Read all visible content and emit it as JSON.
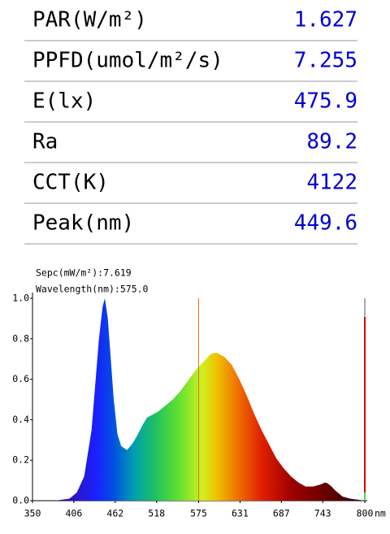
{
  "table": {
    "rows": [
      [
        "PAR(W/m²)",
        "1.627"
      ],
      [
        "PPFD(umol/m²/s)",
        "7.255"
      ],
      [
        "E(lx)",
        "475.9"
      ],
      [
        "Ra",
        "89.2"
      ],
      [
        "CCT(K)",
        "4122"
      ],
      [
        "Peak(nm)",
        "449.6"
      ]
    ]
  },
  "chart_data": {
    "type": "area",
    "annotations": [
      "Sepc(mW/m²):7.619",
      "Wavelength(nm):575.0"
    ],
    "x": [
      380,
      400,
      410,
      420,
      430,
      440,
      445,
      448,
      452,
      460,
      465,
      470,
      478,
      485,
      490,
      500,
      505,
      510,
      520,
      530,
      540,
      550,
      560,
      570,
      580,
      590,
      595,
      600,
      610,
      620,
      630,
      640,
      650,
      660,
      670,
      680,
      690,
      700,
      710,
      720,
      730,
      740,
      746,
      750,
      755,
      760,
      770,
      780,
      790,
      800
    ],
    "values": [
      0,
      0.01,
      0.04,
      0.12,
      0.35,
      0.8,
      0.96,
      1.0,
      0.9,
      0.5,
      0.33,
      0.27,
      0.25,
      0.28,
      0.31,
      0.38,
      0.41,
      0.42,
      0.44,
      0.47,
      0.5,
      0.54,
      0.59,
      0.64,
      0.68,
      0.72,
      0.73,
      0.73,
      0.71,
      0.67,
      0.6,
      0.52,
      0.43,
      0.35,
      0.28,
      0.21,
      0.16,
      0.12,
      0.09,
      0.07,
      0.07,
      0.08,
      0.09,
      0.085,
      0.07,
      0.05,
      0.02,
      0.01,
      0.005,
      0
    ],
    "cursor_x": 575,
    "xlim": [
      350,
      800
    ],
    "ylim": [
      0,
      1
    ],
    "xticks": [
      350,
      406,
      462,
      518,
      575,
      631,
      687,
      743,
      800
    ],
    "x_unit": "nm",
    "yticks": [
      {
        "value": 0,
        "label": "0.0"
      },
      {
        "value": 0.2,
        "label": "0.2"
      },
      {
        "value": 0.4,
        "label": "0.4"
      },
      {
        "value": 0.6,
        "label": "0.6"
      },
      {
        "value": 0.8,
        "label": "0.8"
      },
      {
        "value": 1,
        "label": "1.0"
      }
    ]
  }
}
